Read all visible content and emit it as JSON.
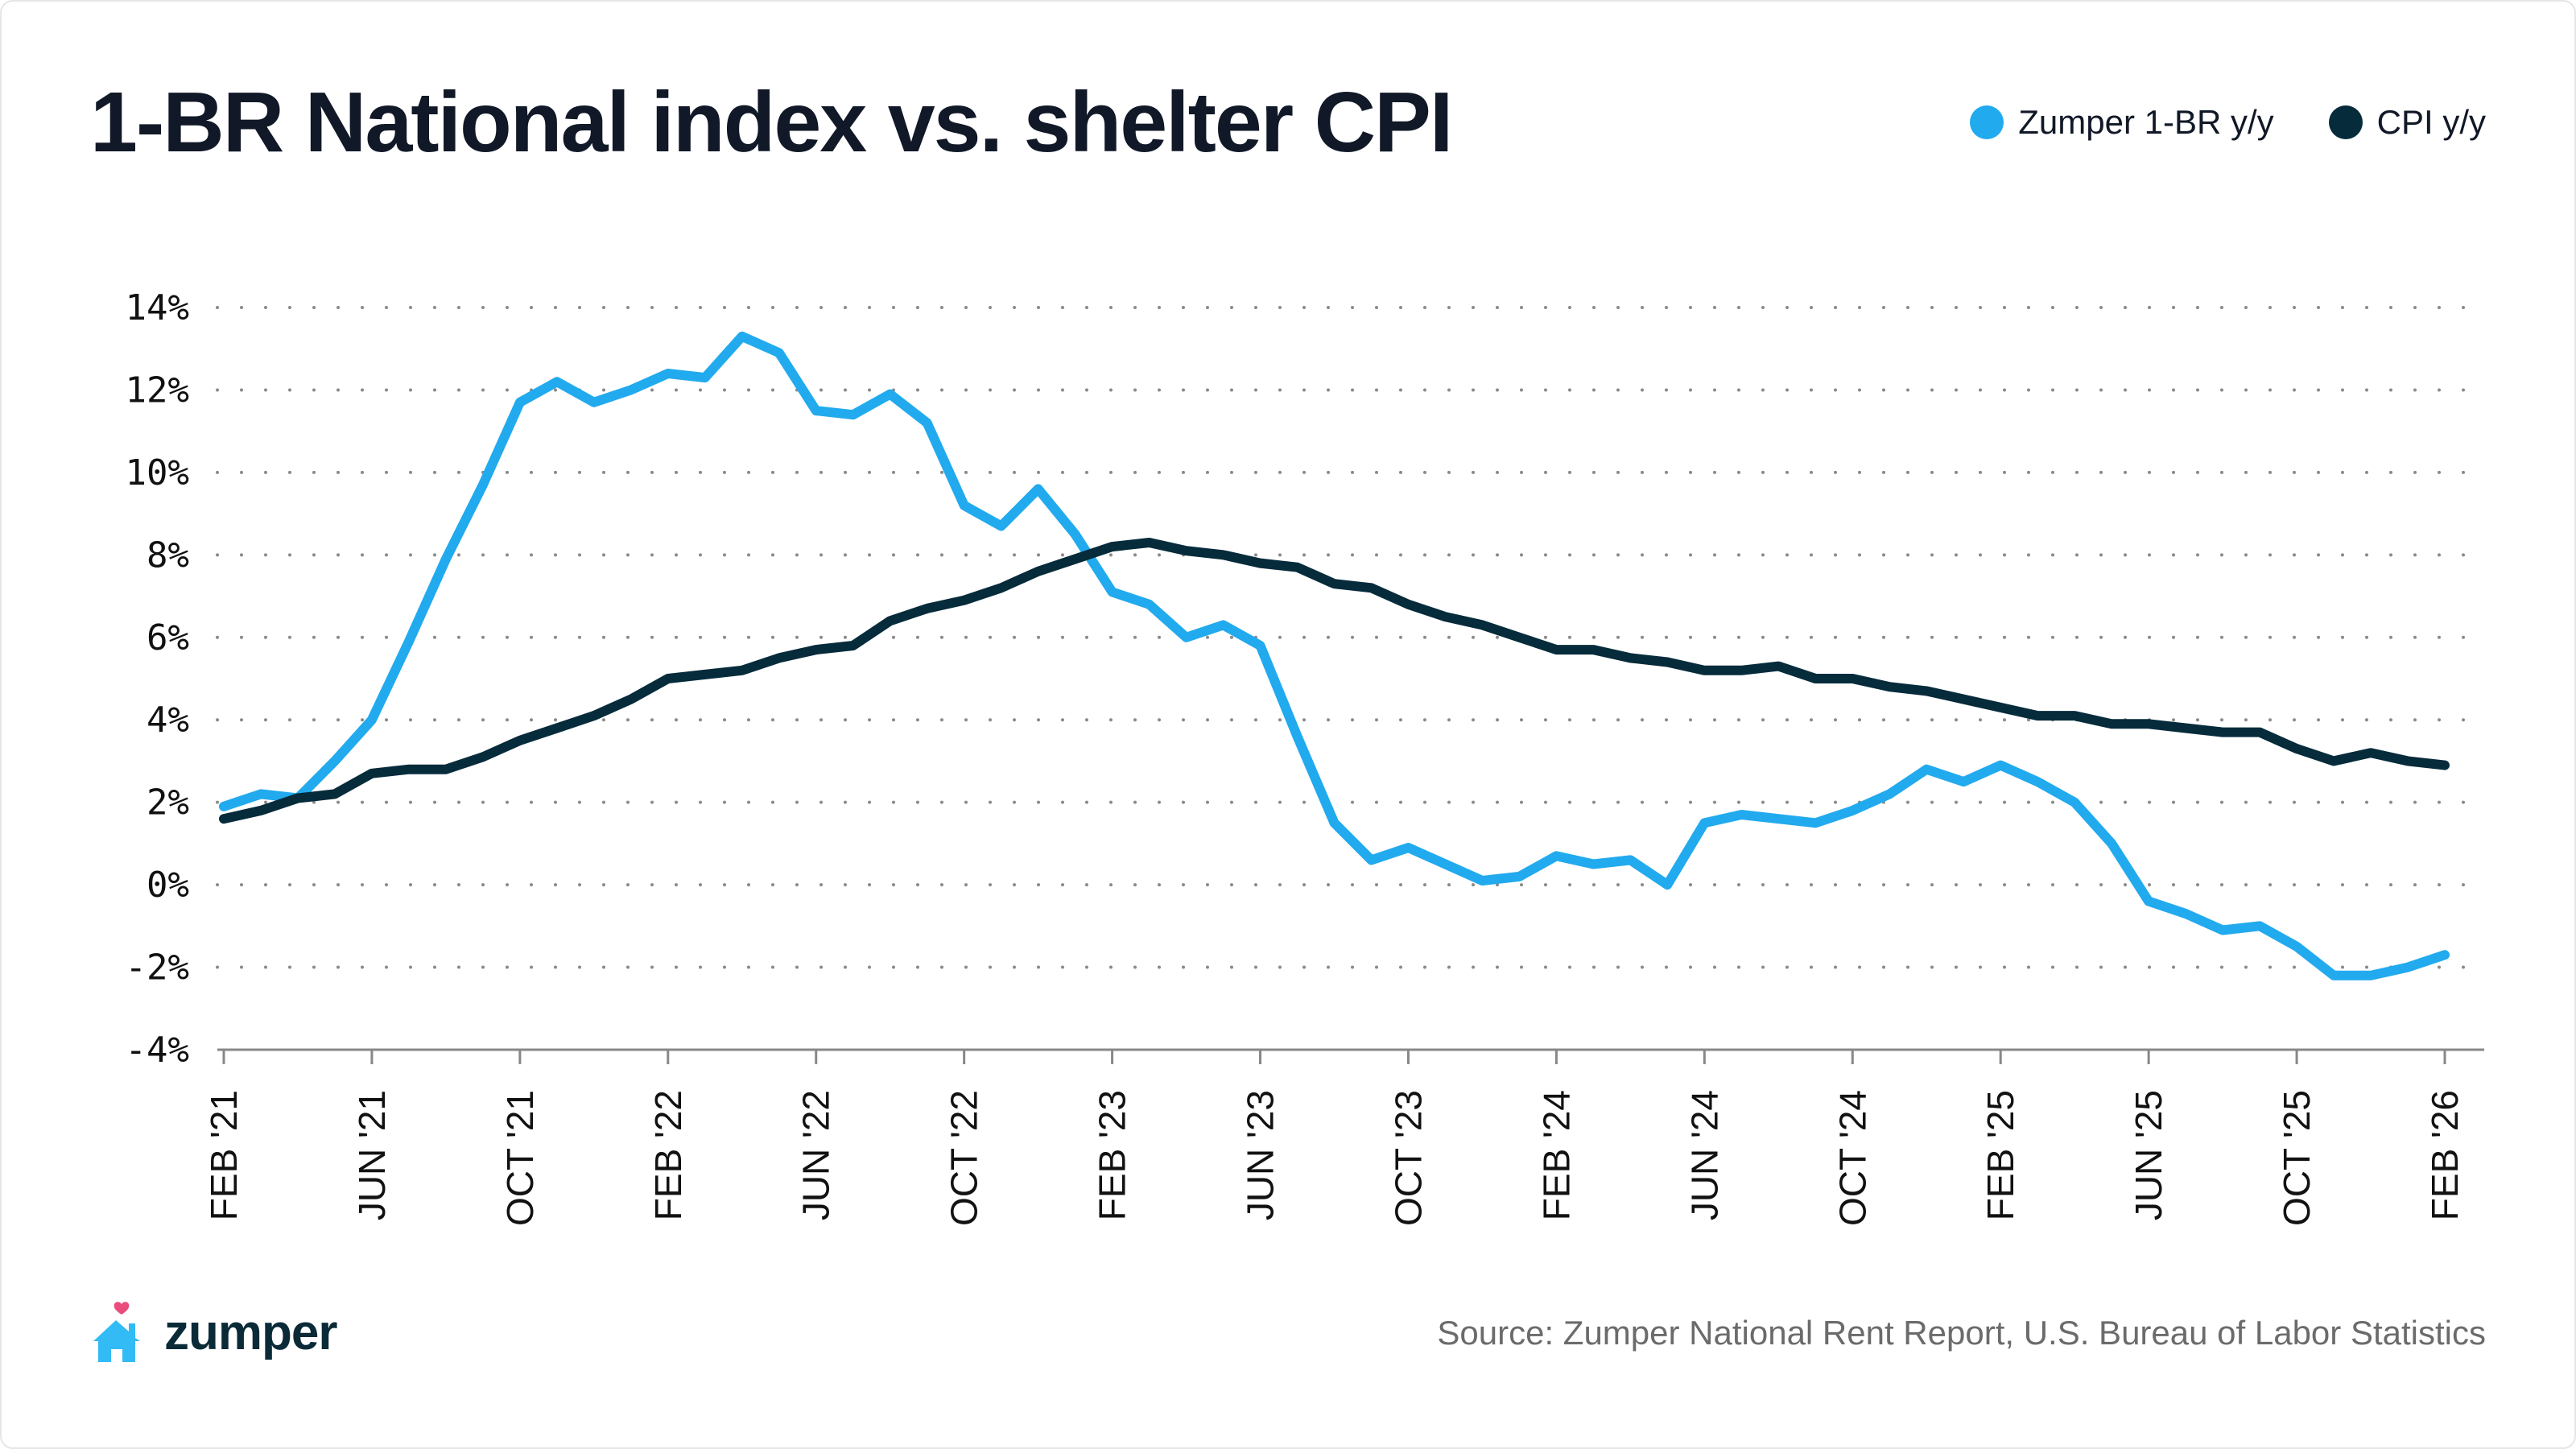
{
  "title": "1-BR National index vs. shelter CPI",
  "legend": [
    {
      "label": "Zumper 1-BR y/y",
      "color": "#22aaee"
    },
    {
      "label": "CPI y/y",
      "color": "#062b3b"
    }
  ],
  "source": "Source: Zumper National Rent Report, U.S. Bureau of Labor Statistics",
  "logo": {
    "text": "zumper",
    "icon": "house-heart-icon"
  },
  "chart_data": {
    "type": "line",
    "x_start": "2021-02",
    "x_end": "2026-02",
    "x_frequency": "monthly",
    "xtick_labels": [
      "FEB '21",
      "JUN '21",
      "OCT '21",
      "FEB '22",
      "JUN '22",
      "OCT '22",
      "FEB '23",
      "JUN '23",
      "OCT '23",
      "FEB '24",
      "JUN '24",
      "OCT '24",
      "FEB '25",
      "JUN '25",
      "OCT '25",
      "FEB '26"
    ],
    "ytick_labels": [
      "14%",
      "12%",
      "10%",
      "8%",
      "6%",
      "4%",
      "2%",
      "0%",
      "-2%",
      "-4%"
    ],
    "ylim": [
      -4,
      14
    ],
    "grid": "horizontal dotted",
    "legend_position": "top-right",
    "series": [
      {
        "name": "Zumper 1-BR y/y",
        "color": "#22aaee",
        "values": [
          1.9,
          2.2,
          2.1,
          3.0,
          4.0,
          5.9,
          7.9,
          9.7,
          11.7,
          12.2,
          11.7,
          12.0,
          12.4,
          12.3,
          13.3,
          12.9,
          11.5,
          11.4,
          11.9,
          11.2,
          9.2,
          8.7,
          9.6,
          8.5,
          7.1,
          6.8,
          6.0,
          6.3,
          5.8,
          3.6,
          1.5,
          0.6,
          0.9,
          0.5,
          0.1,
          0.2,
          0.7,
          0.5,
          0.6,
          0.0,
          1.5,
          1.7,
          1.6,
          1.5,
          1.8,
          2.2,
          2.8,
          2.5,
          2.9,
          2.5,
          2.0,
          1.0,
          -0.4,
          -0.7,
          -1.1,
          -1.0,
          -1.5,
          -2.2,
          -2.2,
          -2.0,
          -1.7
        ]
      },
      {
        "name": "CPI y/y",
        "color": "#062b3b",
        "values": [
          1.6,
          1.8,
          2.1,
          2.2,
          2.7,
          2.8,
          2.8,
          3.1,
          3.5,
          3.8,
          4.1,
          4.5,
          5.0,
          5.1,
          5.2,
          5.5,
          5.7,
          5.8,
          6.4,
          6.7,
          6.9,
          7.2,
          7.6,
          7.9,
          8.2,
          8.3,
          8.1,
          8.0,
          7.8,
          7.7,
          7.3,
          7.2,
          6.8,
          6.5,
          6.3,
          6.0,
          5.7,
          5.7,
          5.5,
          5.4,
          5.2,
          5.2,
          5.3,
          5.0,
          5.0,
          4.8,
          4.7,
          4.5,
          4.3,
          4.1,
          4.1,
          3.9,
          3.9,
          3.8,
          3.7,
          3.7,
          3.3,
          3.0,
          3.2,
          3.0,
          2.9
        ]
      }
    ]
  }
}
